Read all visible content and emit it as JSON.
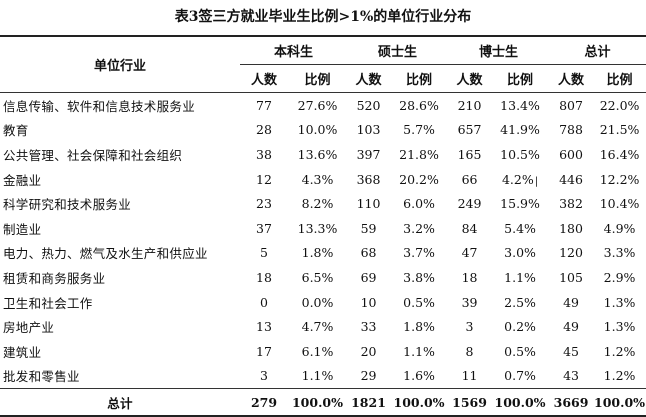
{
  "title": "表3签三方就业毕业生比例>1%的单位行业分布",
  "header": {
    "industry": "单位行业",
    "groups": [
      "本科生",
      "硕士生",
      "博士生",
      "总计"
    ],
    "count_label": "人数",
    "ratio_label": "比例"
  },
  "rows": [
    {
      "industry": "信息传输、软件和信息技术服务业",
      "bk_n": "77",
      "bk_r": "27.6%",
      "ss_n": "520",
      "ss_r": "28.6%",
      "bs_n": "210",
      "bs_r": "13.4%",
      "zj_n": "807",
      "zj_r": "22.0%"
    },
    {
      "industry": "教育",
      "bk_n": "28",
      "bk_r": "10.0%",
      "ss_n": "103",
      "ss_r": "5.7%",
      "bs_n": "657",
      "bs_r": "41.9%",
      "zj_n": "788",
      "zj_r": "21.5%"
    },
    {
      "industry": "公共管理、社会保障和社会组织",
      "bk_n": "38",
      "bk_r": "13.6%",
      "ss_n": "397",
      "ss_r": "21.8%",
      "bs_n": "165",
      "bs_r": "10.5%",
      "zj_n": "600",
      "zj_r": "16.4%"
    },
    {
      "industry": "金融业",
      "bk_n": "12",
      "bk_r": "4.3%",
      "ss_n": "368",
      "ss_r": "20.2%",
      "bs_n": "66",
      "bs_r": "4.2%",
      "zj_n": "446",
      "zj_r": "12.2%"
    },
    {
      "industry": "科学研究和技术服务业",
      "bk_n": "23",
      "bk_r": "8.2%",
      "ss_n": "110",
      "ss_r": "6.0%",
      "bs_n": "249",
      "bs_r": "15.9%",
      "zj_n": "382",
      "zj_r": "10.4%"
    },
    {
      "industry": "制造业",
      "bk_n": "37",
      "bk_r": "13.3%",
      "ss_n": "59",
      "ss_r": "3.2%",
      "bs_n": "84",
      "bs_r": "5.4%",
      "zj_n": "180",
      "zj_r": "4.9%"
    },
    {
      "industry": "电力、热力、燃气及水生产和供应业",
      "bk_n": "5",
      "bk_r": "1.8%",
      "ss_n": "68",
      "ss_r": "3.7%",
      "bs_n": "47",
      "bs_r": "3.0%",
      "zj_n": "120",
      "zj_r": "3.3%"
    },
    {
      "industry": "租赁和商务服务业",
      "bk_n": "18",
      "bk_r": "6.5%",
      "ss_n": "69",
      "ss_r": "3.8%",
      "bs_n": "18",
      "bs_r": "1.1%",
      "zj_n": "105",
      "zj_r": "2.9%"
    },
    {
      "industry": "卫生和社会工作",
      "bk_n": "0",
      "bk_r": "0.0%",
      "ss_n": "10",
      "ss_r": "0.5%",
      "bs_n": "39",
      "bs_r": "2.5%",
      "zj_n": "49",
      "zj_r": "1.3%"
    },
    {
      "industry": "房地产业",
      "bk_n": "13",
      "bk_r": "4.7%",
      "ss_n": "33",
      "ss_r": "1.8%",
      "bs_n": "3",
      "bs_r": "0.2%",
      "zj_n": "49",
      "zj_r": "1.3%"
    },
    {
      "industry": "建筑业",
      "bk_n": "17",
      "bk_r": "6.1%",
      "ss_n": "20",
      "ss_r": "1.1%",
      "bs_n": "8",
      "bs_r": "0.5%",
      "zj_n": "45",
      "zj_r": "1.2%"
    },
    {
      "industry": "批发和零售业",
      "bk_n": "3",
      "bk_r": "1.1%",
      "ss_n": "29",
      "ss_r": "1.6%",
      "bs_n": "11",
      "bs_r": "0.7%",
      "zj_n": "43",
      "zj_r": "1.2%"
    }
  ],
  "total": {
    "label": "总计",
    "bk_n": "279",
    "bk_r": "100.0%",
    "ss_n": "1821",
    "ss_r": "100.0%",
    "bs_n": "1569",
    "bs_r": "100.0%",
    "zj_n": "3669",
    "zj_r": "100.0%"
  }
}
